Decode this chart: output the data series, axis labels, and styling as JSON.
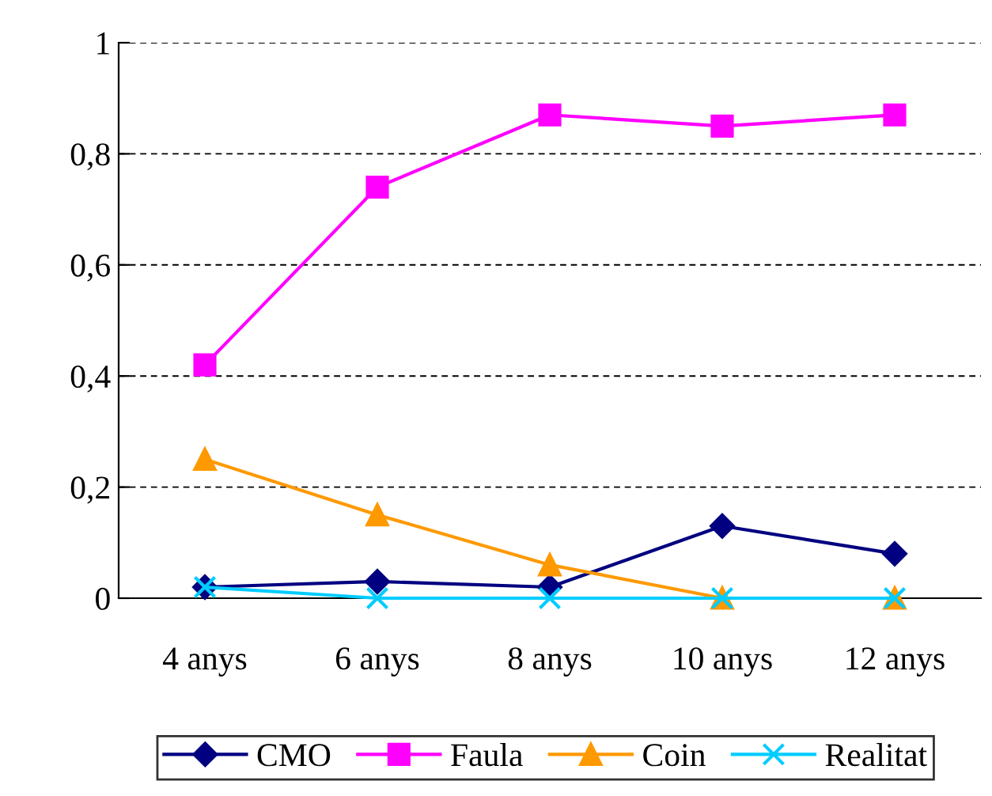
{
  "chart_data": {
    "type": "line",
    "categories": [
      "4 anys",
      "6 anys",
      "8 anys",
      "10 anys",
      "12 anys"
    ],
    "series": [
      {
        "name": "CMO",
        "color": "#000080",
        "marker": "diamond",
        "values": [
          0.02,
          0.03,
          0.02,
          0.13,
          0.08
        ]
      },
      {
        "name": "Faula",
        "color": "#ff00ff",
        "marker": "square",
        "values": [
          0.42,
          0.74,
          0.87,
          0.85,
          0.87
        ]
      },
      {
        "name": "Coin",
        "color": "#ff9900",
        "marker": "triangle",
        "values": [
          0.25,
          0.15,
          0.06,
          0,
          0
        ]
      },
      {
        "name": "Realitat",
        "color": "#00ccff",
        "marker": "cross",
        "values": [
          0.02,
          0,
          0,
          0,
          0
        ]
      }
    ],
    "ylim": [
      0,
      1
    ],
    "yticks": [
      0,
      {
        "value": 0.2,
        "label": "0,2"
      },
      {
        "value": 0.4,
        "label": "0,4"
      },
      {
        "value": 0.6,
        "label": "0,6"
      },
      {
        "value": 0.8,
        "label": "0,8"
      },
      1
    ],
    "grid": "y",
    "legend": "bottom",
    "line_style": "solid"
  }
}
